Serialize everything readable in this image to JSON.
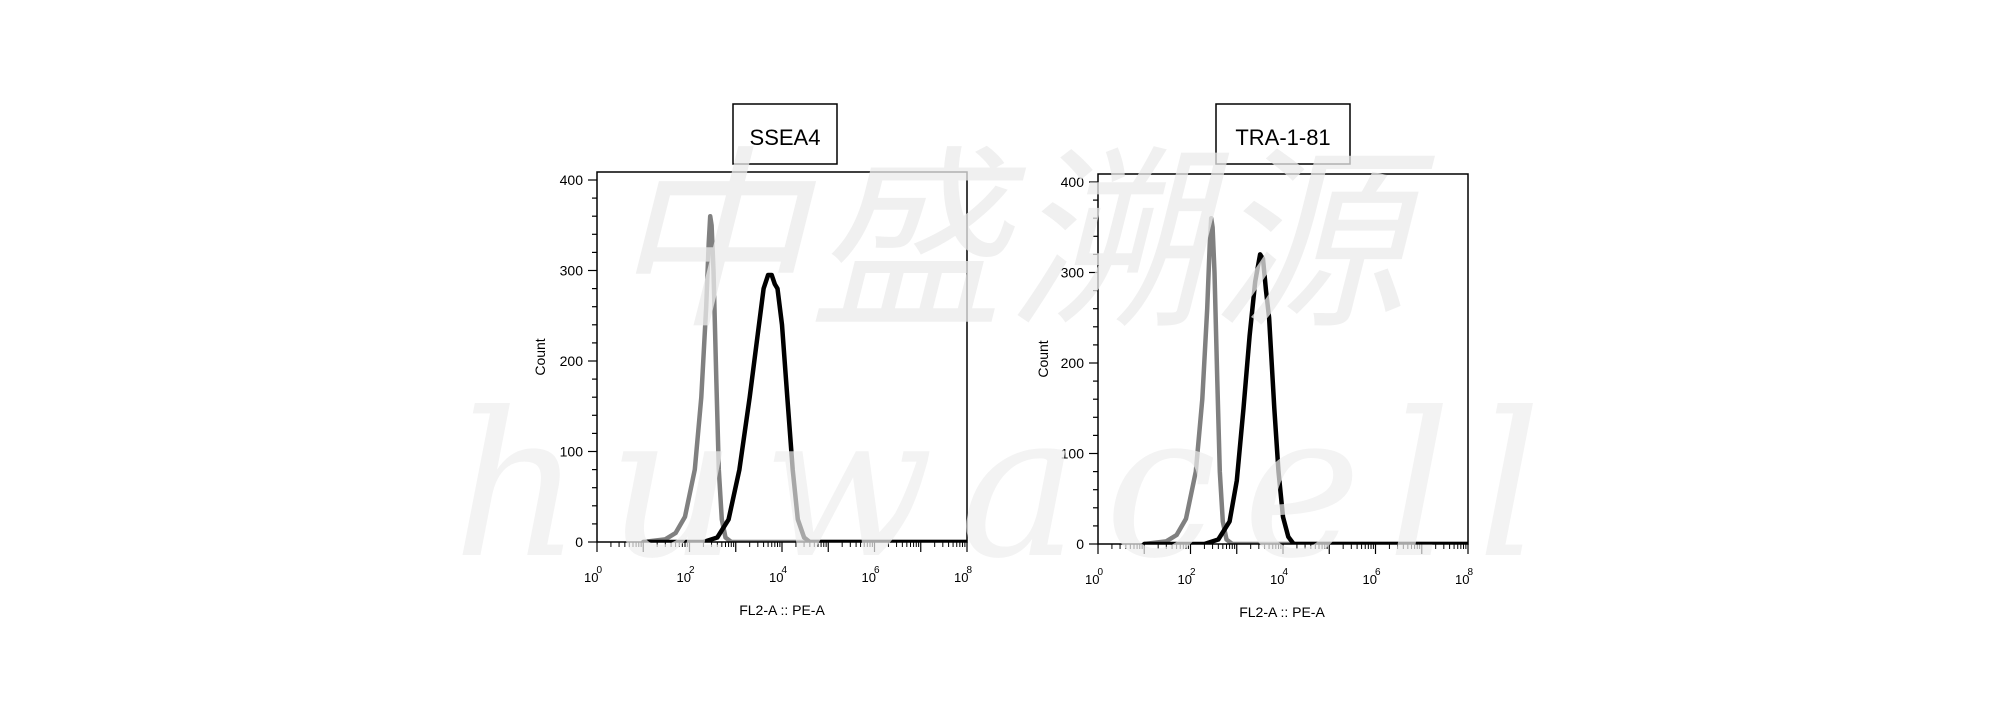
{
  "watermark": {
    "chinese": "中盛溯源",
    "latin": "huwacell"
  },
  "chart_data": [
    {
      "type": "line",
      "title": "SSEA4",
      "xlabel": "FL2-A :: PE-A",
      "ylabel": "Count",
      "x_scale": "log",
      "xlim": [
        1,
        100000000
      ],
      "ylim": [
        0,
        400
      ],
      "y_ticks": [
        "0",
        "100",
        "200",
        "300",
        "400"
      ],
      "x_ticks": [
        {
          "base": "10",
          "exp": "0"
        },
        {
          "base": "10",
          "exp": "2"
        },
        {
          "base": "10",
          "exp": "4"
        },
        {
          "base": "10",
          "exp": "6"
        },
        {
          "base": "10",
          "exp": "8"
        }
      ],
      "series": [
        {
          "color": "#808080",
          "points": [
            [
              10,
              0
            ],
            [
              30,
              3
            ],
            [
              50,
              10
            ],
            [
              80,
              28
            ],
            [
              130,
              80
            ],
            [
              180,
              160
            ],
            [
              230,
              260
            ],
            [
              260,
              330
            ],
            [
              280,
              360
            ],
            [
              300,
              350
            ],
            [
              330,
              300
            ],
            [
              380,
              180
            ],
            [
              430,
              80
            ],
            [
              500,
              25
            ],
            [
              600,
              5
            ],
            [
              800,
              0
            ],
            [
              1200000,
              0
            ],
            [
              100000000,
              0
            ]
          ]
        },
        {
          "color": "#000000",
          "points": [
            [
              10,
              0
            ],
            [
              200,
              0
            ],
            [
              400,
              5
            ],
            [
              700,
              25
            ],
            [
              1200,
              80
            ],
            [
              2000,
              160
            ],
            [
              3000,
              230
            ],
            [
              4000,
              280
            ],
            [
              5000,
              295
            ],
            [
              6000,
              295
            ],
            [
              7000,
              285
            ],
            [
              8000,
              280
            ],
            [
              10000,
              240
            ],
            [
              13000,
              160
            ],
            [
              17000,
              80
            ],
            [
              22000,
              25
            ],
            [
              30000,
              5
            ],
            [
              40000,
              0
            ],
            [
              100000000,
              0
            ]
          ]
        }
      ]
    },
    {
      "type": "line",
      "title": "TRA-1-81",
      "xlabel": "FL2-A :: PE-A",
      "ylabel": "Count",
      "x_scale": "log",
      "xlim": [
        1,
        100000000
      ],
      "ylim": [
        0,
        400
      ],
      "y_ticks": [
        "0",
        "100",
        "200",
        "300",
        "400"
      ],
      "x_ticks": [
        {
          "base": "10",
          "exp": "0"
        },
        {
          "base": "10",
          "exp": "2"
        },
        {
          "base": "10",
          "exp": "4"
        },
        {
          "base": "10",
          "exp": "6"
        },
        {
          "base": "10",
          "exp": "8"
        }
      ],
      "series": [
        {
          "color": "#808080",
          "points": [
            [
              10,
              0
            ],
            [
              30,
              3
            ],
            [
              50,
              10
            ],
            [
              80,
              28
            ],
            [
              130,
              80
            ],
            [
              180,
              160
            ],
            [
              230,
              260
            ],
            [
              260,
              330
            ],
            [
              280,
              360
            ],
            [
              300,
              350
            ],
            [
              330,
              300
            ],
            [
              380,
              180
            ],
            [
              430,
              80
            ],
            [
              500,
              25
            ],
            [
              600,
              5
            ],
            [
              800,
              0
            ],
            [
              1200000,
              0
            ],
            [
              100000000,
              0
            ]
          ]
        },
        {
          "color": "#000000",
          "points": [
            [
              10,
              0
            ],
            [
              200,
              0
            ],
            [
              400,
              5
            ],
            [
              700,
              25
            ],
            [
              1000,
              70
            ],
            [
              1400,
              150
            ],
            [
              1900,
              230
            ],
            [
              2500,
              290
            ],
            [
              3200,
              320
            ],
            [
              3700,
              315
            ],
            [
              4300,
              280
            ],
            [
              5000,
              250
            ],
            [
              6500,
              150
            ],
            [
              8000,
              80
            ],
            [
              10000,
              30
            ],
            [
              13000,
              8
            ],
            [
              17000,
              0
            ],
            [
              100000000,
              0
            ]
          ]
        }
      ]
    }
  ]
}
